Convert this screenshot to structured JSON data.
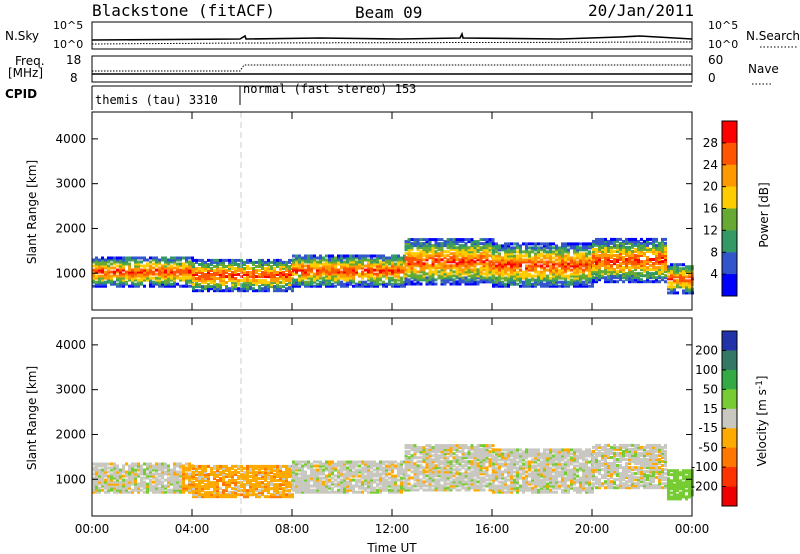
{
  "header": {
    "station": "Blackstone (fitACF)",
    "beam": "Beam 09",
    "date": "20/Jan/2011"
  },
  "top_panels": {
    "nsky_label": "N.Sky",
    "nsky_ticks": [
      "10^5",
      "10^0"
    ],
    "nsearch_label": "N.Search",
    "nsearch_ticks": [
      "10^5",
      "10^0"
    ],
    "freq_label_1": "Freq.",
    "freq_label_2": "[MHz]",
    "freq_ticks": [
      "18",
      "8"
    ],
    "nave_label": "Nave",
    "nave_ticks": [
      "60",
      "0"
    ],
    "cpid_label": "CPID",
    "cpid_modes": [
      {
        "text": "themis (tau) 3310",
        "start": 0,
        "end": 6
      },
      {
        "text": "normal (fast stereo) 153",
        "start": 6,
        "end": 24
      }
    ]
  },
  "chart_data": [
    {
      "type": "heatmap",
      "name": "power",
      "ylabel": "Slant Range [km]",
      "xlabel": "",
      "ylim": [
        180,
        4600
      ],
      "xlim": [
        0,
        24
      ],
      "yticks": [
        "1000",
        "2000",
        "3000",
        "4000"
      ],
      "colorbar_label": "Power [dB]",
      "colorbar_ticks": [
        "28",
        "24",
        "20",
        "16",
        "12",
        "8",
        "4"
      ],
      "colorbar_colors": [
        "#ff0000",
        "#ff5500",
        "#ff9900",
        "#ffcc00",
        "#66aa33",
        "#339966",
        "#3355cc",
        "#0000ff"
      ],
      "scatter_bands": [
        {
          "t0": 0.0,
          "t1": 4.0,
          "r0": 700,
          "r1": 1350
        },
        {
          "t0": 4.0,
          "t1": 8.0,
          "r0": 600,
          "r1": 1300
        },
        {
          "t0": 8.0,
          "t1": 12.5,
          "r0": 700,
          "r1": 1400
        },
        {
          "t0": 12.5,
          "t1": 16.0,
          "r0": 750,
          "r1": 1750
        },
        {
          "t0": 16.0,
          "t1": 20.0,
          "r0": 700,
          "r1": 1650
        },
        {
          "t0": 20.0,
          "t1": 23.0,
          "r0": 800,
          "r1": 1750
        },
        {
          "t0": 23.0,
          "t1": 24.0,
          "r0": 550,
          "r1": 1200
        }
      ]
    },
    {
      "type": "heatmap",
      "name": "velocity",
      "ylabel": "Slant Range [km]",
      "xlabel": "Time UT",
      "ylim": [
        180,
        4600
      ],
      "xlim": [
        0,
        24
      ],
      "yticks": [
        "1000",
        "2000",
        "3000",
        "4000"
      ],
      "xticks": [
        "00:00",
        "04:00",
        "08:00",
        "12:00",
        "16:00",
        "20:00",
        "00:00"
      ],
      "colorbar_label": "Velocity",
      "colorbar_unit": "[m s",
      "colorbar_exp": "-1",
      "colorbar_ticks": [
        "200",
        "100",
        "50",
        "15",
        "-15",
        "-50",
        "-100",
        "-200"
      ],
      "colorbar_colors": [
        "#2233aa",
        "#337766",
        "#33aa44",
        "#77cc33",
        "#c8c8c0",
        "#ffaa00",
        "#ff7700",
        "#ff3300",
        "#ee0000"
      ],
      "scatter_bands": [
        {
          "t0": 0.0,
          "t1": 4.0,
          "r0": 700,
          "r1": 1350
        },
        {
          "t0": 4.0,
          "t1": 8.0,
          "r0": 600,
          "r1": 1300
        },
        {
          "t0": 8.0,
          "t1": 12.5,
          "r0": 700,
          "r1": 1400
        },
        {
          "t0": 12.5,
          "t1": 16.0,
          "r0": 750,
          "r1": 1750
        },
        {
          "t0": 16.0,
          "t1": 20.0,
          "r0": 700,
          "r1": 1650
        },
        {
          "t0": 20.0,
          "t1": 23.0,
          "r0": 800,
          "r1": 1750
        },
        {
          "t0": 23.0,
          "t1": 24.0,
          "r0": 550,
          "r1": 1200
        }
      ]
    }
  ]
}
